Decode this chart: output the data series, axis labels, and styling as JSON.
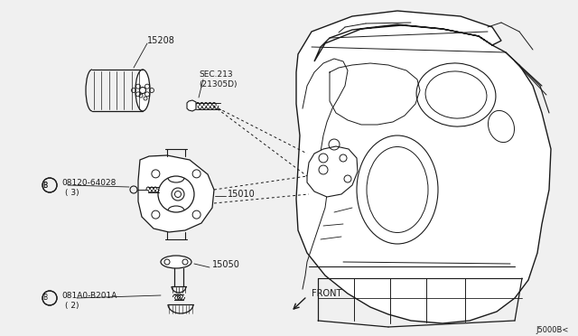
{
  "bg_color": "#f0f0f0",
  "line_color": "#1a1a1a",
  "text_color": "#1a1a1a",
  "figsize": [
    6.4,
    3.72
  ],
  "dpi": 100,
  "diagram_id": "J5000B<",
  "parts": {
    "oil_filter_label": "15208",
    "sec_label1": "SEC.213",
    "sec_label2": "(21305D)",
    "bolt_label1": "08120-64028",
    "bolt_qty1": "( 3)",
    "pump_label": "15010",
    "strainer_label": "15050",
    "bolt_label2": "081A0-B201A",
    "bolt_qty2": "( 2)",
    "front_label": "FRONT"
  }
}
